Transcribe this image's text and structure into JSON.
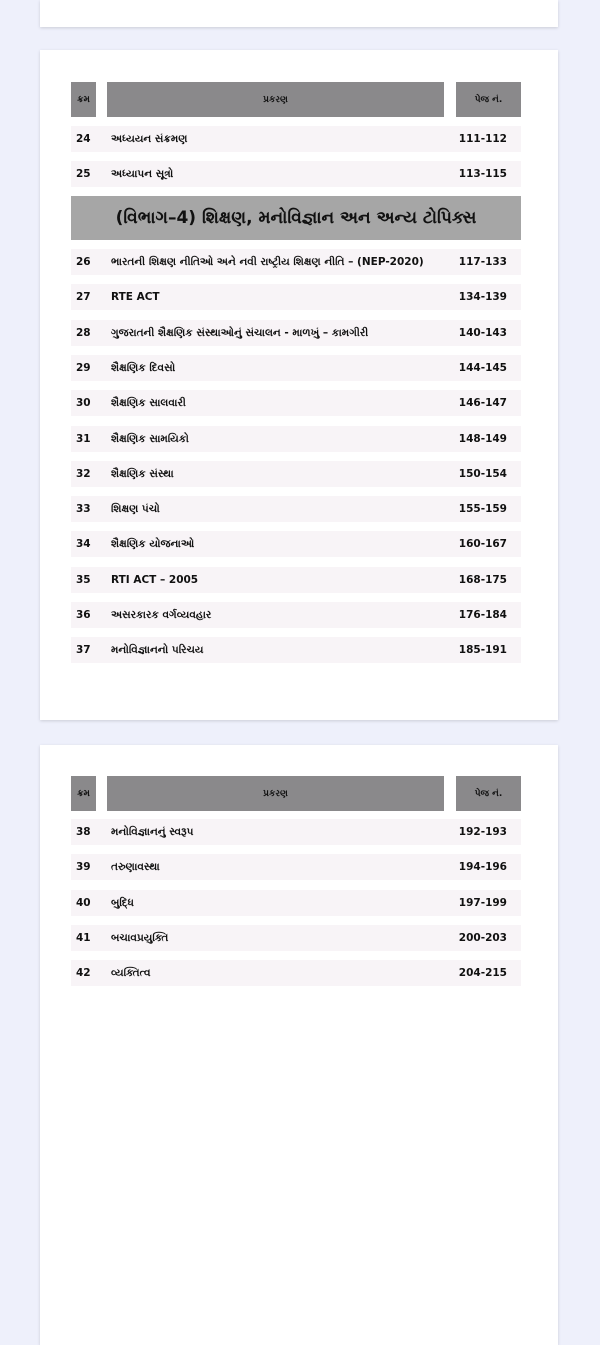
{
  "header": {
    "no": "ક્રમ",
    "title": "પ્રકરણ",
    "page": "પેજ નં."
  },
  "page2_rows_a": [
    {
      "no": "24",
      "title": "અધ્યયન સંક્રમણ",
      "page": "111-112"
    },
    {
      "no": "25",
      "title": "અધ્યાપન સૂત્રો",
      "page": "113-115"
    }
  ],
  "section": "(વિભાગ–4)  શિક્ષણ, મનોવિજ્ઞાન અન અન્ય ટોપિક્સ",
  "page2_rows_b": [
    {
      "no": "26",
      "title": "ભારતની શિક્ષણ નીતિઓ અને નવી રાષ્ટ્રીય શિક્ષણ નીતિ – (NEP-2020)",
      "page": "117-133"
    },
    {
      "no": "27",
      "title": "RTE ACT",
      "page": "134-139"
    },
    {
      "no": "28",
      "title": "ગુજરાતની શૈક્ષણિક સંસ્થાઓનું સંચાલન - માળખું – કામગીરી",
      "page": "140-143"
    },
    {
      "no": "29",
      "title": "શૈક્ષણિક દિવસો",
      "page": "144-145"
    },
    {
      "no": "30",
      "title": "શૈક્ષણિક સાલવારી",
      "page": "146-147"
    },
    {
      "no": "31",
      "title": "શૈક્ષણિક સામયિકો",
      "page": "148-149"
    },
    {
      "no": "32",
      "title": "શૈક્ષણિક સંસ્થા",
      "page": "150-154"
    },
    {
      "no": "33",
      "title": "શિક્ષણ પંચો",
      "page": "155-159"
    },
    {
      "no": "34",
      "title": "શૈક્ષણિક યોજનાઓ",
      "page": "160-167"
    },
    {
      "no": "35",
      "title": "RTI ACT – 2005",
      "page": "168-175"
    },
    {
      "no": "36",
      "title": "અસરકારક વર્ગવ્યવહાર",
      "page": "176-184"
    },
    {
      "no": "37",
      "title": "મનોવિજ્ઞાનનો પરિચય",
      "page": "185-191"
    }
  ],
  "page3_rows": [
    {
      "no": "38",
      "title": "મનોવિજ્ઞાનનું સ્વરૂપ",
      "page": "192-193"
    },
    {
      "no": "39",
      "title": "તરુણાવસ્થા",
      "page": "194-196"
    },
    {
      "no": "40",
      "title": "બુદ્ધિ",
      "page": "197-199"
    },
    {
      "no": "41",
      "title": "બચાવપ્રયુક્તિ",
      "page": "200-203"
    },
    {
      "no": "42",
      "title": "વ્યક્તિત્વ",
      "page": "204-215"
    }
  ]
}
